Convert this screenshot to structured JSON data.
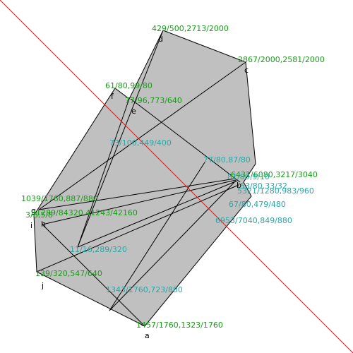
{
  "points": [
    {
      "name": "a",
      "coords": "1457/1760,1323/1760"
    },
    {
      "name": "b",
      "coords": "6431/6080,3217/3040"
    },
    {
      "name": "c",
      "coords": "2867/2000,2581/2000"
    },
    {
      "name": "d",
      "coords": "429/500,2713/2000"
    },
    {
      "name": "e",
      "coords": "77/96,773/640"
    },
    {
      "name": "f",
      "coords": "61/80,99/80"
    },
    {
      "name": "g",
      "coords": "1039/1760,887/880"
    },
    {
      "name": "h",
      "coords": "31289/84320,41243/42160"
    },
    {
      "name": "i",
      "coords": "3/8,5/8"
    },
    {
      "name": "j",
      "coords": "139/320,547/640"
    }
  ],
  "intersections": [
    "73/100,449/400",
    "77/80,87/80",
    "81/80,9/10",
    "53/80,33/32",
    "5321/1280,983/960",
    "67/80,479/480",
    "6953/7040,849/880",
    "11/16,289/320",
    "1343/1760,723/880"
  ]
}
